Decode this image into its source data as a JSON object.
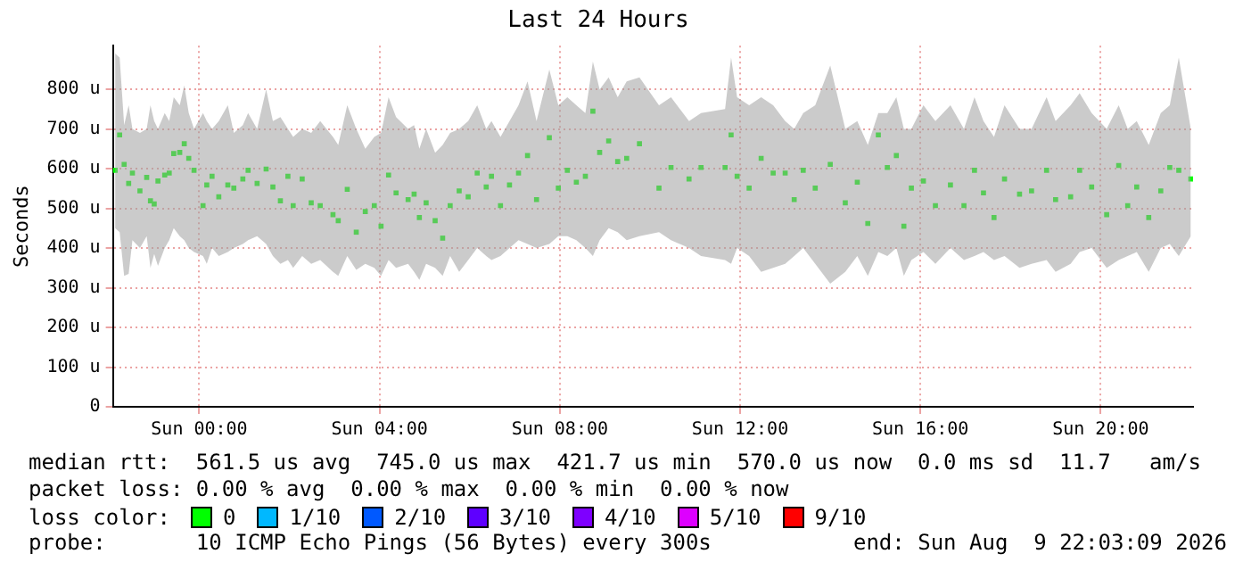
{
  "chart_data": {
    "type": "scatter",
    "title": "Last 24 Hours",
    "ylabel": "Seconds",
    "marker": "square",
    "grid": true,
    "legend": false,
    "xlim": [
      "2026-08-08T22:05",
      "2026-08-09T22:03"
    ],
    "ylim": [
      0,
      910
    ],
    "xticks": [
      {
        "value": "2026-08-09T00:00",
        "label": "Sun 00:00"
      },
      {
        "value": "2026-08-09T04:00",
        "label": "Sun 04:00"
      },
      {
        "value": "2026-08-09T08:00",
        "label": "Sun 08:00"
      },
      {
        "value": "2026-08-09T12:00",
        "label": "Sun 12:00"
      },
      {
        "value": "2026-08-09T16:00",
        "label": "Sun 16:00"
      },
      {
        "value": "2026-08-09T20:00",
        "label": "Sun 20:00"
      }
    ],
    "yticks": [
      0,
      {
        "value": 100,
        "label": "100 u"
      },
      {
        "value": 200,
        "label": "200 u"
      },
      {
        "value": 300,
        "label": "300 u"
      },
      {
        "value": 400,
        "label": "400 u"
      },
      {
        "value": 500,
        "label": "500 u"
      },
      {
        "value": 600,
        "label": "600 u"
      },
      {
        "value": 700,
        "label": "700 u"
      },
      {
        "value": 800,
        "label": "800 u"
      }
    ],
    "x": [
      "2026-08-08T22:08",
      "2026-08-08T22:14",
      "2026-08-08T22:20",
      "2026-08-08T22:26",
      "2026-08-08T22:31",
      "2026-08-08T22:41",
      "2026-08-08T22:50",
      "2026-08-08T22:55",
      "2026-08-08T23:00",
      "2026-08-08T23:05",
      "2026-08-08T23:14",
      "2026-08-08T23:20",
      "2026-08-08T23:26",
      "2026-08-08T23:34",
      "2026-08-08T23:40",
      "2026-08-08T23:46",
      "2026-08-08T23:53",
      "2026-08-09T00:05",
      "2026-08-09T00:10",
      "2026-08-09T00:17",
      "2026-08-09T00:26",
      "2026-08-09T00:38",
      "2026-08-09T00:46",
      "2026-08-09T00:58",
      "2026-08-09T01:05",
      "2026-08-09T01:17",
      "2026-08-09T01:29",
      "2026-08-09T01:38",
      "2026-08-09T01:48",
      "2026-08-09T01:58",
      "2026-08-09T02:05",
      "2026-08-09T02:17",
      "2026-08-09T02:29",
      "2026-08-09T02:41",
      "2026-08-09T02:58",
      "2026-08-09T03:05",
      "2026-08-09T03:17",
      "2026-08-09T03:29",
      "2026-08-09T03:41",
      "2026-08-09T03:53",
      "2026-08-09T04:02",
      "2026-08-09T04:12",
      "2026-08-09T04:22",
      "2026-08-09T04:38",
      "2026-08-09T04:46",
      "2026-08-09T04:53",
      "2026-08-09T05:02",
      "2026-08-09T05:14",
      "2026-08-09T05:24",
      "2026-08-09T05:34",
      "2026-08-09T05:46",
      "2026-08-09T05:58",
      "2026-08-09T06:10",
      "2026-08-09T06:22",
      "2026-08-09T06:29",
      "2026-08-09T06:41",
      "2026-08-09T06:53",
      "2026-08-09T07:05",
      "2026-08-09T07:17",
      "2026-08-09T07:29",
      "2026-08-09T07:46",
      "2026-08-09T07:58",
      "2026-08-09T08:10",
      "2026-08-09T08:22",
      "2026-08-09T08:34",
      "2026-08-09T08:44",
      "2026-08-09T08:53",
      "2026-08-09T09:05",
      "2026-08-09T09:17",
      "2026-08-09T09:29",
      "2026-08-09T09:46",
      "2026-08-09T10:12",
      "2026-08-09T10:28",
      "2026-08-09T10:52",
      "2026-08-09T11:08",
      "2026-08-09T11:40",
      "2026-08-09T11:48",
      "2026-08-09T11:56",
      "2026-08-09T12:12",
      "2026-08-09T12:28",
      "2026-08-09T12:44",
      "2026-08-09T13:00",
      "2026-08-09T13:12",
      "2026-08-09T13:24",
      "2026-08-09T13:40",
      "2026-08-09T14:00",
      "2026-08-09T14:20",
      "2026-08-09T14:36",
      "2026-08-09T14:50",
      "2026-08-09T15:04",
      "2026-08-09T15:16",
      "2026-08-09T15:28",
      "2026-08-09T15:38",
      "2026-08-09T15:48",
      "2026-08-09T16:04",
      "2026-08-09T16:20",
      "2026-08-09T16:40",
      "2026-08-09T16:58",
      "2026-08-09T17:12",
      "2026-08-09T17:24",
      "2026-08-09T17:38",
      "2026-08-09T17:52",
      "2026-08-09T18:12",
      "2026-08-09T18:28",
      "2026-08-09T18:48",
      "2026-08-09T19:00",
      "2026-08-09T19:20",
      "2026-08-09T19:32",
      "2026-08-09T19:48",
      "2026-08-09T20:08",
      "2026-08-09T20:24",
      "2026-08-09T20:36",
      "2026-08-09T20:48",
      "2026-08-09T21:04",
      "2026-08-09T21:20",
      "2026-08-09T21:32",
      "2026-08-09T21:44",
      "2026-08-09T22:00"
    ],
    "series": [
      {
        "color": "#00ff00",
        "values": [
          596,
          685,
          611,
          563,
          589,
          544,
          578,
          519,
          511,
          569,
          584,
          589,
          638,
          641,
          663,
          626,
          596,
          507,
          559,
          581,
          529,
          559,
          551,
          574,
          596,
          563,
          599,
          554,
          519,
          581,
          507,
          574,
          514,
          507,
          484,
          469,
          548,
          440,
          492,
          507,
          455,
          584,
          539,
          522,
          536,
          477,
          514,
          469,
          425,
          507,
          544,
          529,
          589,
          554,
          581,
          507,
          559,
          589,
          633,
          522,
          678,
          551,
          596,
          566,
          581,
          745,
          641,
          670,
          618,
          626,
          663,
          551,
          603,
          574,
          603,
          603,
          685,
          581,
          551,
          626,
          589,
          589,
          522,
          596,
          551,
          611,
          514,
          566,
          462,
          685,
          603,
          633,
          455,
          551,
          569,
          507,
          559,
          507,
          596,
          539,
          477,
          574,
          536,
          544,
          596,
          522,
          529,
          596,
          554,
          484,
          608,
          507,
          554,
          477,
          544,
          603,
          596,
          574
        ],
        "lower": [
          450,
          440,
          330,
          335,
          420,
          400,
          430,
          350,
          385,
          355,
          400,
          420,
          450,
          430,
          420,
          400,
          390,
          380,
          360,
          400,
          380,
          390,
          400,
          410,
          420,
          430,
          410,
          380,
          360,
          370,
          350,
          380,
          360,
          370,
          340,
          330,
          380,
          345,
          360,
          350,
          330,
          370,
          350,
          360,
          340,
          320,
          360,
          350,
          330,
          380,
          340,
          370,
          400,
          380,
          370,
          380,
          400,
          420,
          410,
          400,
          410,
          430,
          430,
          420,
          400,
          380,
          420,
          450,
          440,
          420,
          430,
          440,
          420,
          400,
          380,
          370,
          360,
          400,
          380,
          340,
          350,
          360,
          380,
          400,
          360,
          310,
          340,
          380,
          330,
          390,
          380,
          400,
          330,
          370,
          390,
          360,
          400,
          370,
          380,
          390,
          370,
          380,
          350,
          360,
          370,
          340,
          360,
          390,
          400,
          350,
          370,
          380,
          390,
          340,
          400,
          410,
          380,
          430
        ],
        "upper": [
          890,
          880,
          710,
          760,
          700,
          690,
          700,
          760,
          720,
          700,
          740,
          720,
          780,
          760,
          810,
          740,
          700,
          740,
          720,
          700,
          720,
          760,
          690,
          710,
          740,
          700,
          800,
          720,
          730,
          700,
          680,
          700,
          690,
          720,
          680,
          660,
          760,
          700,
          650,
          680,
          690,
          780,
          730,
          700,
          710,
          650,
          700,
          640,
          660,
          690,
          700,
          720,
          760,
          700,
          720,
          680,
          720,
          760,
          820,
          720,
          850,
          760,
          780,
          760,
          740,
          870,
          800,
          830,
          780,
          820,
          830,
          760,
          780,
          720,
          740,
          750,
          880,
          780,
          760,
          780,
          760,
          720,
          700,
          740,
          760,
          860,
          700,
          720,
          660,
          740,
          740,
          780,
          700,
          700,
          760,
          720,
          760,
          700,
          780,
          720,
          680,
          760,
          700,
          700,
          780,
          720,
          760,
          790,
          740,
          700,
          760,
          700,
          720,
          660,
          740,
          760,
          880,
          700
        ]
      }
    ],
    "annotations": [
      "median rtt:  561.5 us avg  745.0 us max  421.7 us min  570.0 us now  0.0 ms sd  11.7   am/s",
      "packet loss: 0.00 % avg  0.00 % max  0.00 % min  0.00 % now",
      "loss color:",
      "0",
      "1/10",
      "2/10",
      "3/10",
      "4/10",
      "5/10",
      "9/10",
      "probe:       10 ICMP Echo Pings (56 Bytes) every 300s",
      "end: Sun Aug  9 22:03:09 2026"
    ]
  }
}
